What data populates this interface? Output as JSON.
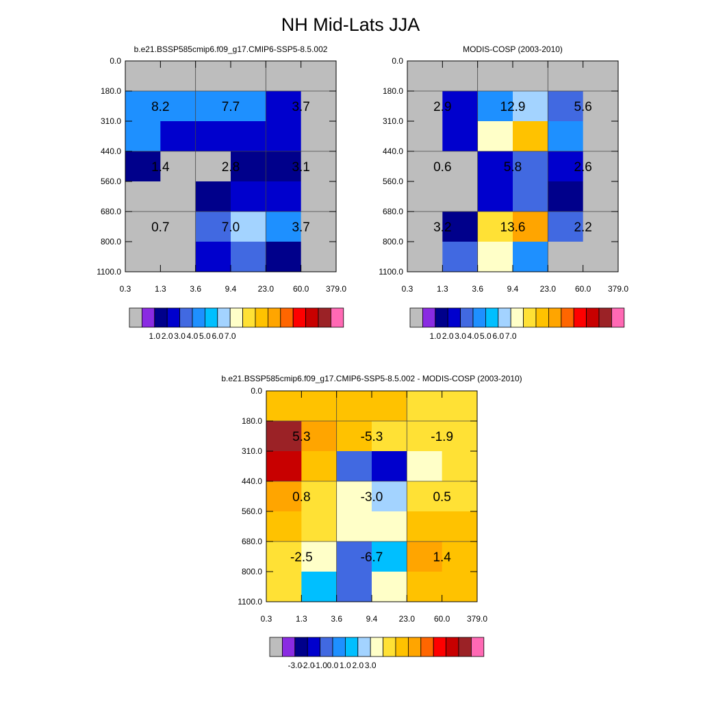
{
  "figure_title": "NH Mid-Lats JJA",
  "chart_data": [
    {
      "type": "heatmap",
      "title": "b.e21.BSSP585cmip6.f09_g17.CMIP6-SSP5-8.5.002",
      "xlabels": [
        "0.3",
        "1.3",
        "3.6",
        "9.4",
        "23.0",
        "60.0",
        "379.0"
      ],
      "ylabels": [
        "0.0",
        "180.0",
        "310.0",
        "440.0",
        "560.0",
        "680.0",
        "800.0",
        "1100.0"
      ],
      "cells": [
        [
          -1,
          -1,
          -1,
          -1,
          -1,
          -1
        ],
        [
          4,
          4,
          4,
          4,
          2,
          -1
        ],
        [
          4,
          2,
          2,
          2,
          2,
          -1
        ],
        [
          1,
          -1,
          -1,
          1,
          1,
          -1
        ],
        [
          -1,
          -1,
          1,
          2,
          2,
          -1
        ],
        [
          -1,
          -1,
          3,
          6,
          4,
          -1
        ],
        [
          -1,
          -1,
          2,
          3,
          1,
          -1
        ]
      ],
      "totals": [
        [
          "8.2",
          "7.7",
          "3.7"
        ],
        [
          "1.4",
          "2.8",
          "3.1"
        ],
        [
          "0.7",
          "7.0",
          "3.7"
        ]
      ]
    },
    {
      "type": "heatmap",
      "title": "MODIS-COSP (2003-2010)",
      "xlabels": [
        "0.3",
        "1.3",
        "3.6",
        "9.4",
        "23.0",
        "60.0",
        "379.0"
      ],
      "ylabels": [
        "0.0",
        "180.0",
        "310.0",
        "440.0",
        "560.0",
        "680.0",
        "800.0",
        "1100.0"
      ],
      "cells": [
        [
          -1,
          -1,
          -1,
          -1,
          -1,
          -1
        ],
        [
          -1,
          2,
          4,
          6,
          3,
          -1
        ],
        [
          -1,
          2,
          7,
          9,
          4,
          -1
        ],
        [
          -1,
          -1,
          2,
          3,
          2,
          -1
        ],
        [
          -1,
          -1,
          2,
          3,
          1,
          -1
        ],
        [
          -1,
          1,
          8,
          10,
          3,
          -1
        ],
        [
          -1,
          3,
          7,
          4,
          -1,
          -1
        ]
      ],
      "totals": [
        [
          "2.9",
          "12.9",
          "5.6"
        ],
        [
          "0.6",
          "5.8",
          "2.6"
        ],
        [
          "3.2",
          "13.6",
          "2.2"
        ]
      ]
    },
    {
      "type": "heatmap",
      "title": "b.e21.BSSP585cmip6.f09_g17.CMIP6-SSP5-8.5.002 - MODIS-COSP (2003-2010)",
      "xlabels": [
        "0.3",
        "1.3",
        "3.6",
        "9.4",
        "23.0",
        "60.0",
        "379.0"
      ],
      "ylabels": [
        "0.0",
        "180.0",
        "310.0",
        "440.0",
        "560.0",
        "680.0",
        "800.0",
        "1100.0"
      ],
      "cells": [
        [
          9,
          9,
          9,
          9,
          8,
          8
        ],
        [
          14,
          10,
          9,
          8,
          8,
          8
        ],
        [
          13,
          9,
          3,
          2,
          7,
          8
        ],
        [
          10,
          8,
          7,
          6,
          8,
          8
        ],
        [
          9,
          8,
          7,
          7,
          9,
          9
        ],
        [
          8,
          7,
          3,
          5,
          10,
          9
        ],
        [
          8,
          5,
          3,
          7,
          9,
          9
        ]
      ],
      "totals": [
        [
          "5.3",
          "-5.3",
          "-1.9"
        ],
        [
          "0.8",
          "-3.0",
          "0.5"
        ],
        [
          "-2.5",
          "-6.7",
          "1.4"
        ]
      ]
    }
  ],
  "colorbars": [
    {
      "colors": [
        "#bdbdbd",
        "#8a2be2",
        "#00008b",
        "#0000cd",
        "#4169e1",
        "#1e90ff",
        "#00bfff",
        "#a3d3ff",
        "#ffffc8",
        "#ffe135",
        "#ffc200",
        "#ffa500",
        "#ff6600",
        "#ff0000",
        "#c80000",
        "#9b2226",
        "#ff69b4"
      ],
      "labels": [
        "1.0",
        "2.0",
        "3.0",
        "4.0",
        "5.0",
        "6.0",
        "7.0"
      ]
    },
    {
      "colors": [
        "#bdbdbd",
        "#8a2be2",
        "#00008b",
        "#0000cd",
        "#4169e1",
        "#1e90ff",
        "#00bfff",
        "#a3d3ff",
        "#ffffc8",
        "#ffe135",
        "#ffc200",
        "#ffa500",
        "#ff6600",
        "#ff0000",
        "#c80000",
        "#9b2226",
        "#ff69b4"
      ],
      "labels": [
        "1.0",
        "2.0",
        "3.0",
        "4.0",
        "5.0",
        "6.0",
        "7.0"
      ]
    },
    {
      "colors": [
        "#bdbdbd",
        "#8a2be2",
        "#00008b",
        "#0000cd",
        "#4169e1",
        "#1e90ff",
        "#00bfff",
        "#a3d3ff",
        "#ffffc8",
        "#ffe135",
        "#ffc200",
        "#ffa500",
        "#ff6600",
        "#ff0000",
        "#c80000",
        "#9b2226",
        "#ff69b4"
      ],
      "labels": [
        "-3.0",
        "-2.0",
        "-1.0",
        "0.0",
        "1.0",
        "2.0",
        "3.0"
      ]
    }
  ],
  "colors": {
    "missing": "#bdbdbd",
    "palette": [
      "#8a2be2",
      "#00008b",
      "#0000cd",
      "#4169e1",
      "#1e90ff",
      "#00bfff",
      "#a3d3ff",
      "#ffffc8",
      "#ffe135",
      "#ffc200",
      "#ffa500",
      "#ff6600",
      "#ff0000",
      "#c80000",
      "#9b2226",
      "#ff69b4"
    ]
  }
}
